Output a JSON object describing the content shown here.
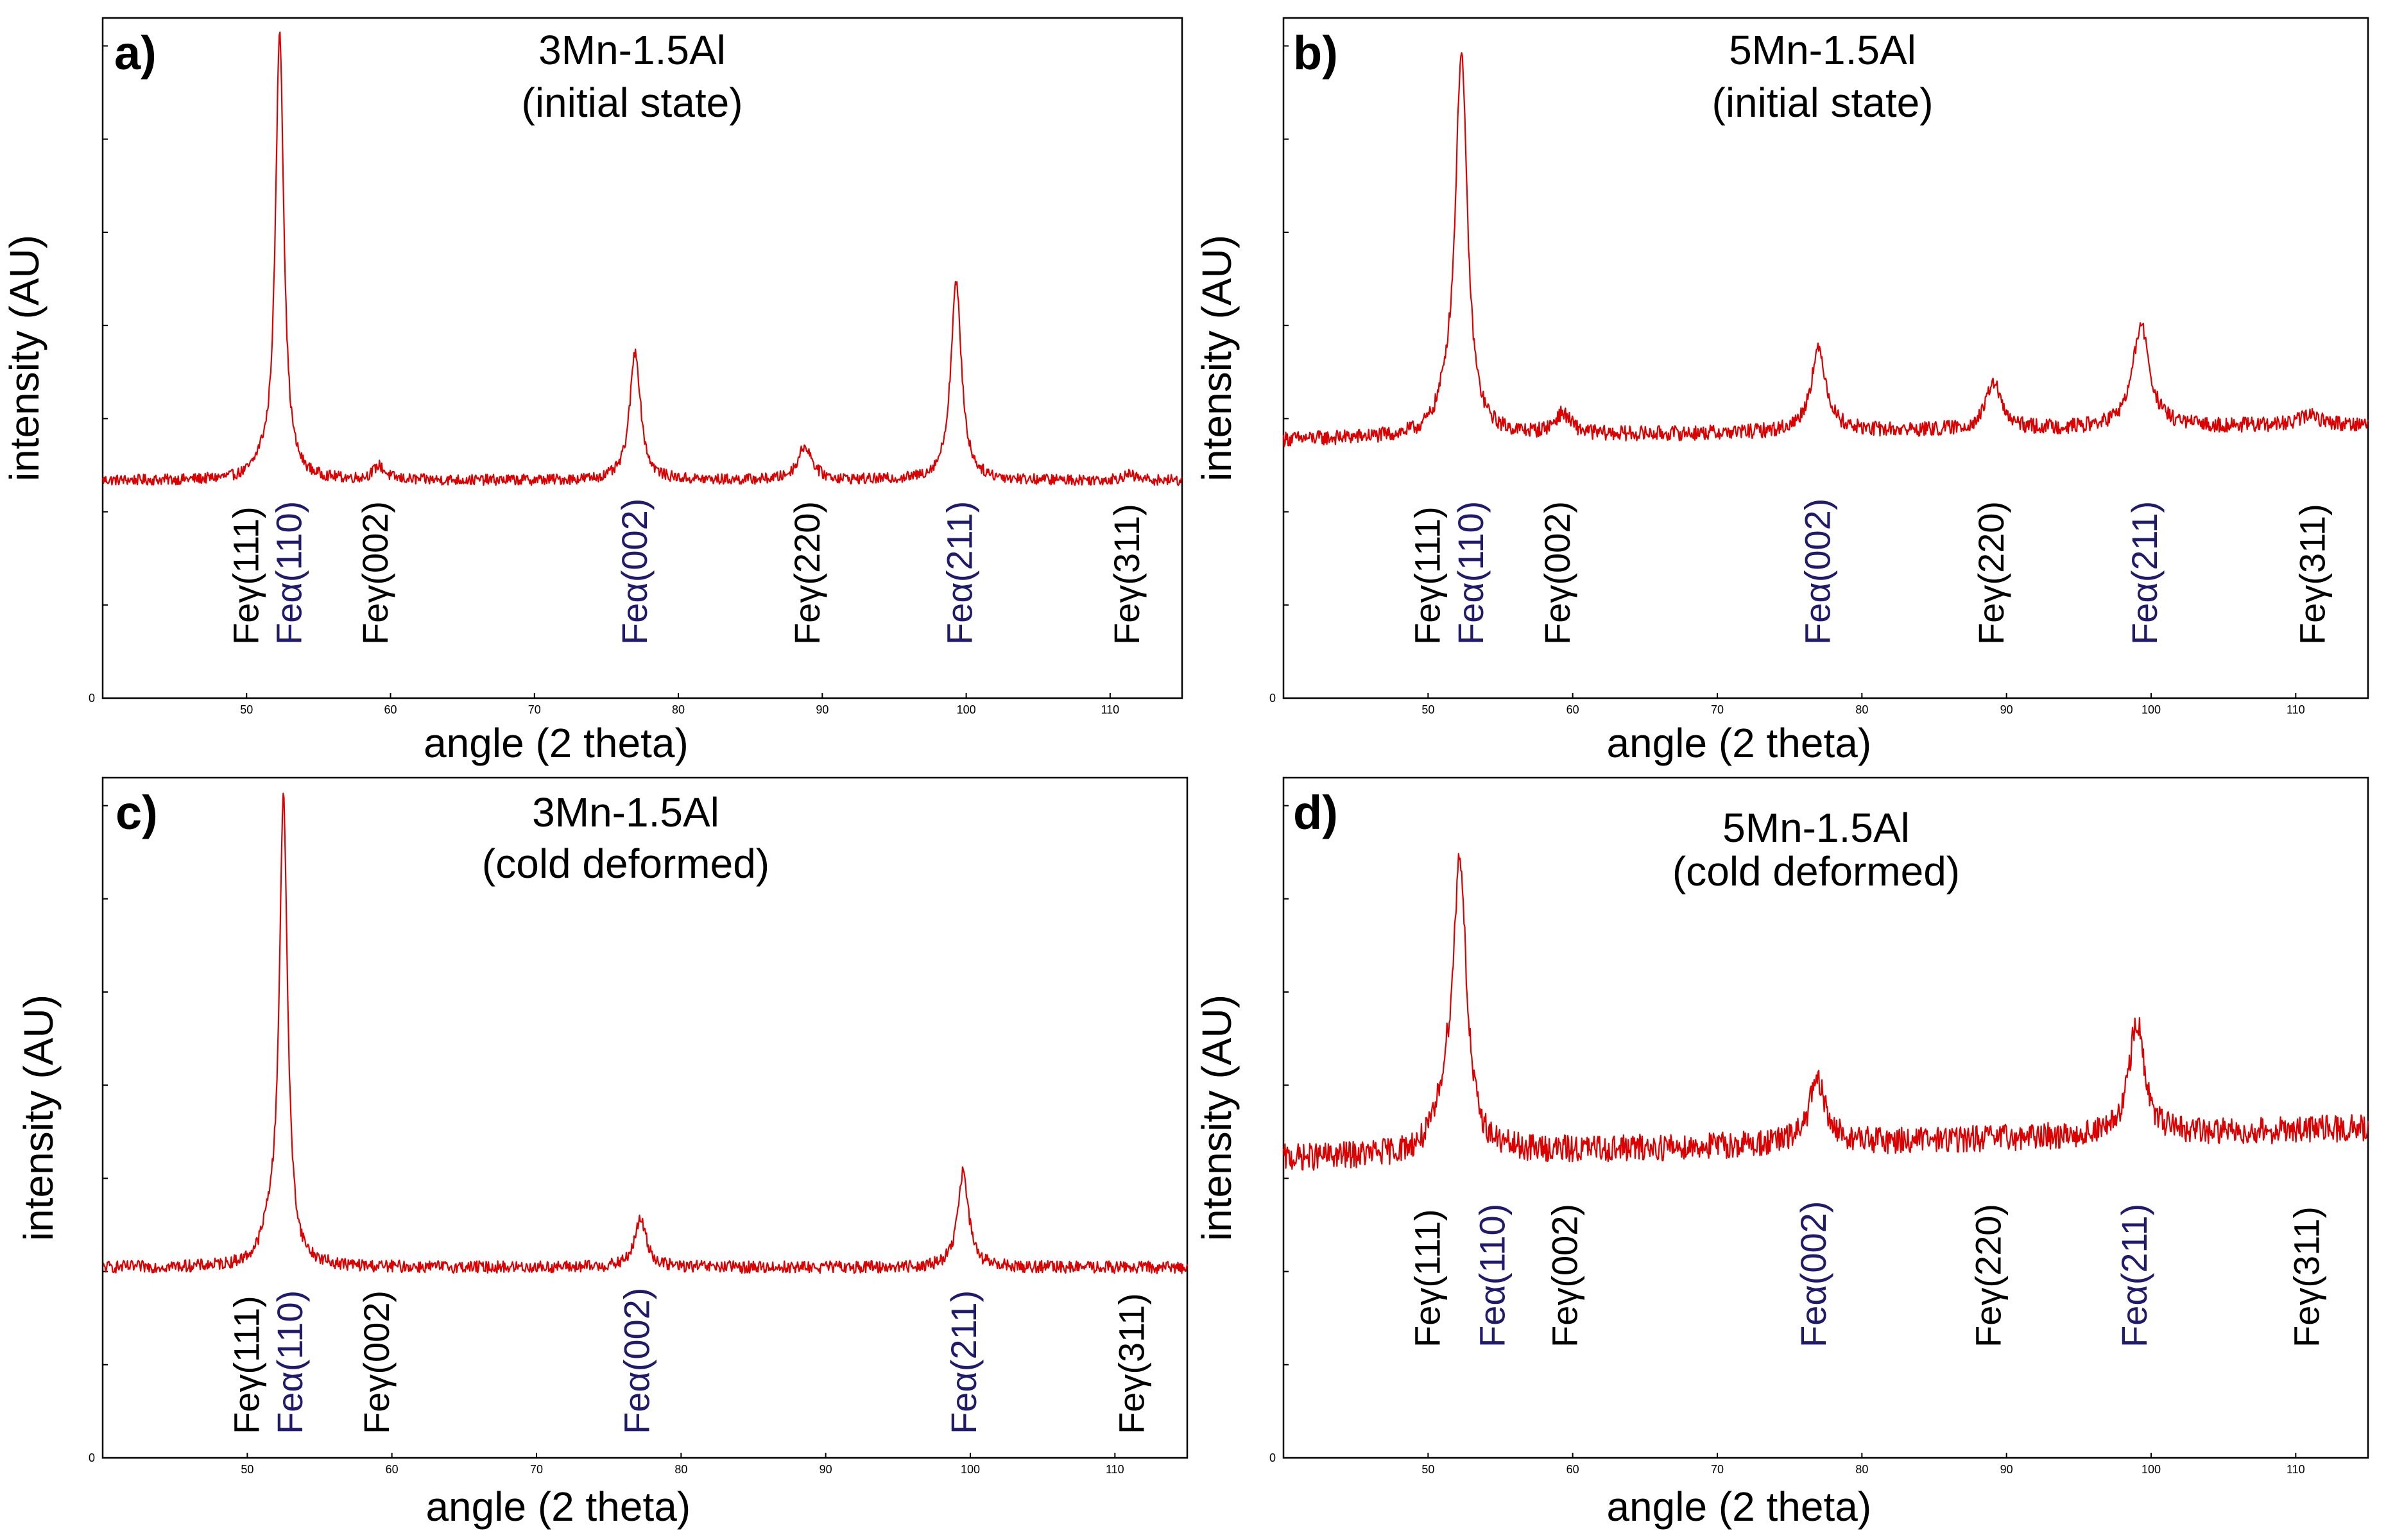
{
  "figure": {
    "colors": {
      "trace": "#dd0000",
      "gamma_label": "#000000",
      "alpha_label": "#1f1a6b",
      "frame": "#000000"
    }
  },
  "chart_data": [
    {
      "type": "line",
      "panel_letter": "a)",
      "title": [
        "3Mn-1.5Al",
        "(initial state)"
      ],
      "xlabel": "angle (2 theta)",
      "ylabel": "intensity (AU)",
      "xlim": [
        40,
        115
      ],
      "ylim": [
        0,
        100
      ],
      "xticks": [
        50,
        60,
        70,
        80,
        90,
        100,
        110
      ],
      "yticks": [
        0
      ],
      "baseline": 32,
      "noise": 0.8,
      "peaks": [
        {
          "x": 51.0,
          "height": 1.5,
          "width": 0.5
        },
        {
          "x": 52.3,
          "height": 66,
          "width": 0.35
        },
        {
          "x": 59.2,
          "height": 2.0,
          "width": 0.5
        },
        {
          "x": 77.0,
          "height": 19,
          "width": 0.45
        },
        {
          "x": 88.8,
          "height": 5,
          "width": 0.6
        },
        {
          "x": 99.3,
          "height": 29,
          "width": 0.45
        },
        {
          "x": 111.3,
          "height": 0.8,
          "width": 0.6
        }
      ],
      "annotations": [
        {
          "text": "Feγ(111)",
          "x": 50.0,
          "phase": "gamma"
        },
        {
          "text": "Feα(110)",
          "x": 53.0,
          "phase": "alpha"
        },
        {
          "text": "Feγ(002)",
          "x": 59.0,
          "phase": "gamma"
        },
        {
          "text": "Feα(002)",
          "x": 77.0,
          "phase": "alpha"
        },
        {
          "text": "Feγ(220)",
          "x": 89.0,
          "phase": "gamma"
        },
        {
          "text": "Feα(211)",
          "x": 99.6,
          "phase": "alpha"
        },
        {
          "text": "Feγ(311)",
          "x": 111.2,
          "phase": "gamma"
        }
      ]
    },
    {
      "type": "line",
      "panel_letter": "b)",
      "title": [
        "5Mn-1.5Al",
        "(initial state)"
      ],
      "xlabel": "angle (2 theta)",
      "ylabel": "intensity (AU)",
      "xlim": [
        40,
        115
      ],
      "ylim": [
        0,
        100
      ],
      "xticks": [
        50,
        60,
        70,
        80,
        90,
        100,
        110
      ],
      "yticks": [
        0
      ],
      "baseline": 38,
      "noise": 1.1,
      "peaks": [
        {
          "x": 51.2,
          "height": 3,
          "width": 0.6
        },
        {
          "x": 52.3,
          "height": 56,
          "width": 0.5
        },
        {
          "x": 59.3,
          "height": 3,
          "width": 0.7
        },
        {
          "x": 77.0,
          "height": 12,
          "width": 0.65
        },
        {
          "x": 89.1,
          "height": 7,
          "width": 0.6
        },
        {
          "x": 99.3,
          "height": 15,
          "width": 0.7
        },
        {
          "x": 111.0,
          "height": 1.5,
          "width": 0.8
        }
      ],
      "slope": 0.03,
      "annotations": [
        {
          "text": "Feγ(111)",
          "x": 50.0,
          "phase": "gamma"
        },
        {
          "text": "Feα(110)",
          "x": 53.0,
          "phase": "alpha"
        },
        {
          "text": "Feγ(002)",
          "x": 59.0,
          "phase": "gamma"
        },
        {
          "text": "Feα(002)",
          "x": 77.0,
          "phase": "alpha"
        },
        {
          "text": "Feγ(220)",
          "x": 89.0,
          "phase": "gamma"
        },
        {
          "text": "Feα(211)",
          "x": 99.6,
          "phase": "alpha"
        },
        {
          "text": "Feγ(311)",
          "x": 111.2,
          "phase": "gamma"
        }
      ]
    },
    {
      "type": "line",
      "panel_letter": "c)",
      "title": [
        "3Mn-1.5Al",
        "(cold deformed)"
      ],
      "xlabel": "angle (2 theta)",
      "ylabel": "intensity (AU)",
      "xlim": [
        40,
        115
      ],
      "ylim": [
        0,
        100
      ],
      "xticks": [
        50,
        60,
        70,
        80,
        90,
        100,
        110
      ],
      "yticks": [
        0
      ],
      "baseline": 28,
      "noise": 0.9,
      "peaks": [
        {
          "x": 51.5,
          "height": 4,
          "width": 0.6
        },
        {
          "x": 52.5,
          "height": 68,
          "width": 0.35
        },
        {
          "x": 77.2,
          "height": 7,
          "width": 0.5
        },
        {
          "x": 99.5,
          "height": 14,
          "width": 0.45
        }
      ],
      "annotations": [
        {
          "text": "Feγ(111)",
          "x": 50.0,
          "phase": "gamma"
        },
        {
          "text": "Feα(110)",
          "x": 53.0,
          "phase": "alpha"
        },
        {
          "text": "Feγ(002)",
          "x": 59.0,
          "phase": "gamma"
        },
        {
          "text": "Feα(002)",
          "x": 77.0,
          "phase": "alpha"
        },
        {
          "text": "Feα(211)",
          "x": 99.6,
          "phase": "alpha"
        },
        {
          "text": "Feγ(311)",
          "x": 111.2,
          "phase": "gamma"
        }
      ]
    },
    {
      "type": "line",
      "panel_letter": "d)",
      "title": [
        "5Mn-1.5Al",
        "(cold deformed)"
      ],
      "xlabel": "angle (2 theta)",
      "ylabel": "intensity (AU)",
      "xlim": [
        40,
        115
      ],
      "ylim": [
        0,
        100
      ],
      "xticks": [
        50,
        60,
        70,
        80,
        90,
        100,
        110
      ],
      "yticks": [
        0
      ],
      "baseline": 44,
      "noise": 2.0,
      "peaks": [
        {
          "x": 51.2,
          "height": 6,
          "width": 0.7
        },
        {
          "x": 52.2,
          "height": 42,
          "width": 0.55
        },
        {
          "x": 76.9,
          "height": 9,
          "width": 0.7
        },
        {
          "x": 99.0,
          "height": 17,
          "width": 0.6
        }
      ],
      "slope": 0.06,
      "annotations": [
        {
          "text": "Feγ(111)",
          "x": 50.0,
          "phase": "gamma"
        },
        {
          "text": "Feα(110)",
          "x": 54.5,
          "phase": "alpha"
        },
        {
          "text": "Feγ(002)",
          "x": 59.5,
          "phase": "gamma"
        },
        {
          "text": "Feα(002)",
          "x": 76.7,
          "phase": "alpha"
        },
        {
          "text": "Feγ(220)",
          "x": 88.8,
          "phase": "gamma"
        },
        {
          "text": "Feα(211)",
          "x": 98.9,
          "phase": "alpha"
        },
        {
          "text": "Feγ(311)",
          "x": 110.8,
          "phase": "gamma"
        }
      ]
    }
  ]
}
